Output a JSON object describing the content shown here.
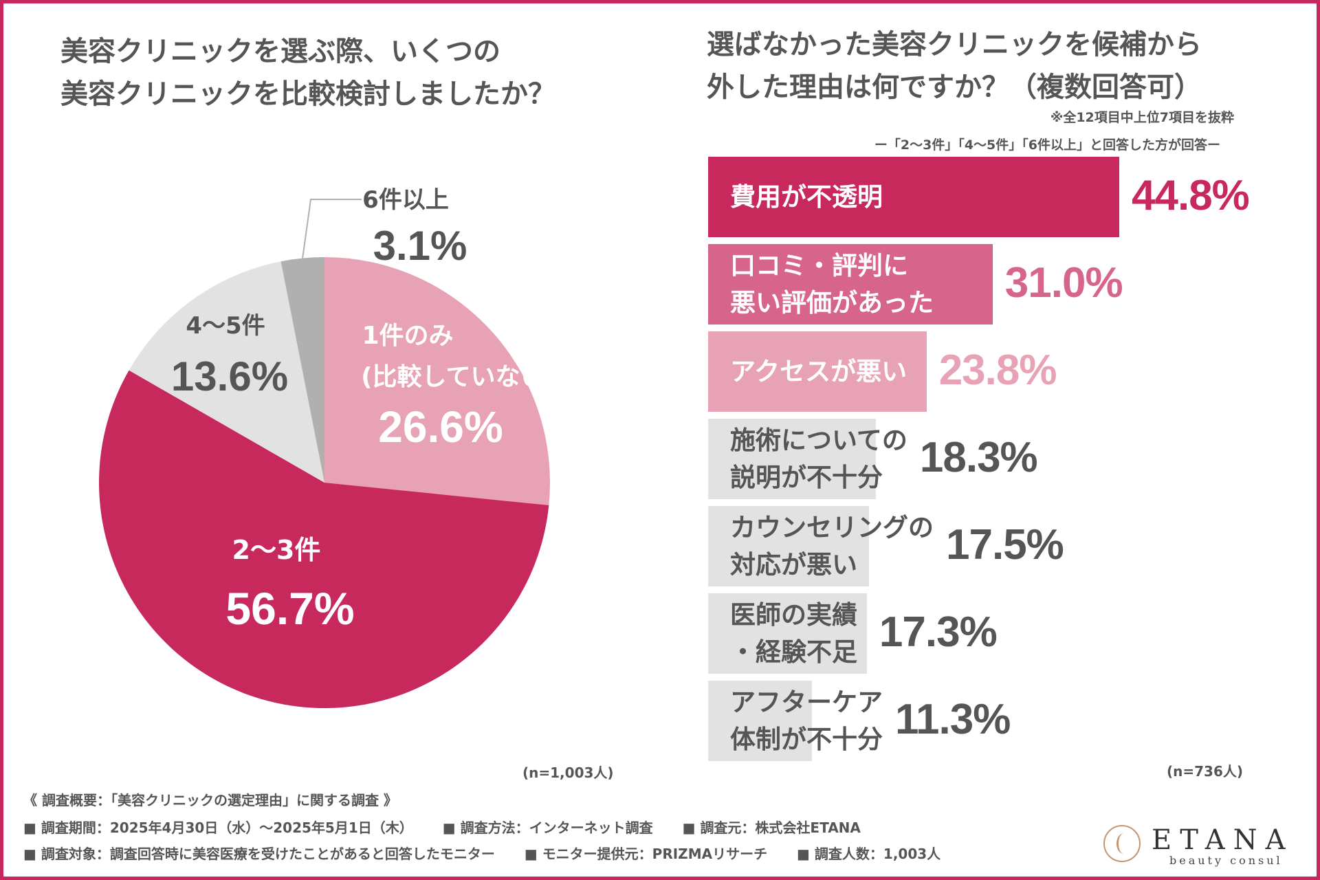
{
  "colors": {
    "accent": "#c8295d",
    "accent_mid": "#d7648a",
    "accent_light": "#e8a2b6",
    "gray_light": "#e2e2e2",
    "gray_mid": "#b0b0b0",
    "text_dark": "#555555"
  },
  "chart_data": [
    {
      "type": "pie",
      "title": "美容クリニックを選ぶ際、いくつの 美容クリニックを比較検討しましたか？",
      "title_lines": [
        "美容クリニックを選ぶ際、いくつの",
        "美容クリニックを比較検討しましたか？"
      ],
      "slices": [
        {
          "label": "1件のみ",
          "label_line2": "(比較していない)",
          "value": 26.6,
          "value_text": "26.6%",
          "color": "#e8a2b6"
        },
        {
          "label": "2〜3件",
          "value": 56.7,
          "value_text": "56.7%",
          "color": "#c8295d"
        },
        {
          "label": "4〜5件",
          "value": 13.6,
          "value_text": "13.6%",
          "color": "#e2e2e2"
        },
        {
          "label": "6件以上",
          "value": 3.1,
          "value_text": "3.1%",
          "color": "#b0b0b0"
        }
      ],
      "n_text": "(n=1,003人)"
    },
    {
      "type": "bar",
      "orientation": "horizontal",
      "title": "選ばなかった美容クリニックを候補から 外した理由は何ですか？（複数回答可）",
      "title_lines": [
        "選ばなかった美容クリニックを候補から",
        "外した理由は何ですか？（複数回答可）"
      ],
      "note1": "※全12項目中上位7項目を抜粋",
      "note2": "ー「2〜3件」「4〜5件」「6件以上」と回答した方が回答ー",
      "categories": [
        [
          "費用が不透明"
        ],
        [
          "口コミ・評判に",
          "悪い評価があった"
        ],
        [
          "アクセスが悪い"
        ],
        [
          "施術についての",
          "説明が不十分"
        ],
        [
          "カウンセリングの",
          "対応が悪い"
        ],
        [
          "医師の実績",
          "・経験不足"
        ],
        [
          "アフターケア",
          "体制が不十分"
        ]
      ],
      "values": [
        44.8,
        31.0,
        23.8,
        18.3,
        17.5,
        17.3,
        11.3
      ],
      "value_texts": [
        "44.8%",
        "31.0%",
        "23.8%",
        "18.3%",
        "17.5%",
        "17.3%",
        "11.3%"
      ],
      "bar_colors": [
        "#c8295d",
        "#d7648a",
        "#e8a2b6",
        "#e2e2e2",
        "#e2e2e2",
        "#e2e2e2",
        "#e2e2e2"
      ],
      "label_colors": [
        "#ffffff",
        "#ffffff",
        "#ffffff",
        "#555555",
        "#555555",
        "#555555",
        "#555555"
      ],
      "value_colors": [
        "#c8295d",
        "#d7648a",
        "#e8a2b6",
        "#555555",
        "#555555",
        "#555555",
        "#555555"
      ],
      "n_text": "(n=736人)"
    }
  ],
  "footer": {
    "heading": "《 調査概要：「美容クリニックの選定理由」に関する調査 》",
    "line1": [
      "■ 調査期間：2025年4月30日（水）〜2025年5月1日（木）",
      "■ 調査方法：インターネット調査",
      "■ 調査元：株式会社ETANA"
    ],
    "line2": [
      "■ 調査対象：調査回答時に美容医療を受けたことがあると回答したモニター",
      "■ モニター提供元：PRIZMAリサーチ",
      "■ 調査人数：1,003人"
    ]
  },
  "logo": {
    "name": "ETANA",
    "sub": "beauty consul"
  }
}
